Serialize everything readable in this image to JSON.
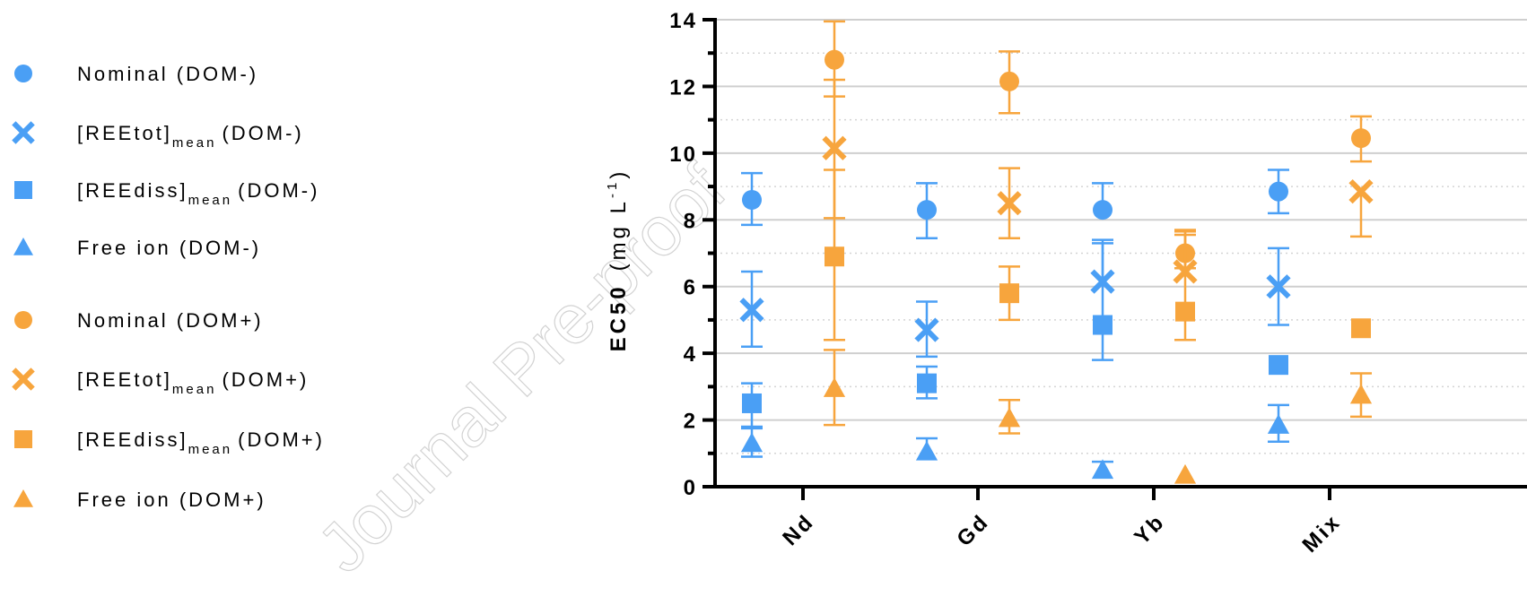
{
  "watermark": "Journal Pre-proof",
  "chart_data": {
    "type": "scatter",
    "ylabel_bold": "EC50",
    "ylabel_unit_open": "(mg L",
    "ylabel_unit_exp": "-1",
    "ylabel_unit_close": ")",
    "ylim": [
      0,
      14
    ],
    "yticks": [
      "0",
      "2",
      "4",
      "6",
      "8",
      "10",
      "12",
      "14"
    ],
    "grid": true,
    "legend_position": "left",
    "categories": [
      "Nd",
      "Gd",
      "Yb",
      "Mix"
    ],
    "colors": {
      "dom_minus": "#4a9ff5",
      "dom_plus": "#f7a53d"
    },
    "series": [
      {
        "name": "Nominal (DOM-)",
        "label_main": "Nominal (DOM-)",
        "label_sub": "",
        "label_tail": "",
        "marker": "circle",
        "group": "dom_minus",
        "values": [
          8.6,
          8.3,
          8.3,
          8.85
        ],
        "errors": [
          [
            7.85,
            9.4
          ],
          [
            7.45,
            9.1
          ],
          [
            null,
            9.1
          ],
          [
            8.2,
            9.5
          ]
        ]
      },
      {
        "name": "[REEtot]mean (DOM-)",
        "label_main": "[REEtot]",
        "label_sub": "mean",
        "label_tail": "(DOM-)",
        "marker": "cross",
        "group": "dom_minus",
        "values": [
          5.3,
          4.7,
          6.15,
          6.0
        ],
        "errors": [
          [
            4.2,
            6.45
          ],
          [
            3.9,
            5.55
          ],
          [
            null,
            7.4
          ],
          [
            4.85,
            7.15
          ]
        ]
      },
      {
        "name": "[REEdiss]mean (DOM-)",
        "label_main": "[REEdiss]",
        "label_sub": "mean",
        "label_tail": "(DOM-)",
        "marker": "square",
        "group": "dom_minus",
        "values": [
          2.5,
          3.1,
          4.85,
          3.65
        ],
        "errors": [
          [
            1.8,
            3.1
          ],
          [
            2.65,
            3.6
          ],
          [
            3.8,
            7.3
          ],
          [
            null,
            null
          ]
        ]
      },
      {
        "name": "Free ion (DOM-)",
        "label_main": "Free ion (DOM-)",
        "label_sub": "",
        "label_tail": "",
        "marker": "triangle",
        "group": "dom_minus",
        "values": [
          1.3,
          1.05,
          0.5,
          1.85
        ],
        "errors": [
          [
            0.9,
            1.75
          ],
          [
            null,
            1.45
          ],
          [
            null,
            0.75
          ],
          [
            1.35,
            2.45
          ]
        ]
      },
      {
        "name": "Nominal (DOM+)",
        "label_main": "Nominal (DOM+)",
        "label_sub": "",
        "label_tail": "",
        "marker": "circle",
        "group": "dom_plus",
        "values": [
          12.8,
          12.15,
          7.0,
          10.45
        ],
        "errors": [
          [
            11.7,
            13.95
          ],
          [
            11.2,
            13.05
          ],
          [
            6.55,
            7.7
          ],
          [
            9.75,
            11.1
          ]
        ]
      },
      {
        "name": "[REEtot]mean (DOM+)",
        "label_main": "[REEtot]",
        "label_sub": "mean",
        "label_tail": "(DOM+)",
        "marker": "cross",
        "group": "dom_plus",
        "values": [
          10.15,
          8.5,
          6.45,
          8.85
        ],
        "errors": [
          [
            8.05,
            12.2
          ],
          [
            7.45,
            9.55
          ],
          [
            null,
            7.55
          ],
          [
            7.5,
            null
          ]
        ]
      },
      {
        "name": "[REEdiss]mean (DOM+)",
        "label_main": "[REEdiss]",
        "label_sub": "mean",
        "label_tail": "(DOM+)",
        "marker": "square",
        "group": "dom_plus",
        "values": [
          6.9,
          5.8,
          5.25,
          4.75
        ],
        "errors": [
          [
            4.4,
            9.5
          ],
          [
            5.0,
            6.6
          ],
          [
            4.4,
            7.65
          ],
          [
            null,
            null
          ]
        ]
      },
      {
        "name": "Free ion (DOM+)",
        "label_main": "Free ion (DOM+)",
        "label_sub": "",
        "label_tail": "",
        "marker": "triangle",
        "group": "dom_plus",
        "values": [
          2.95,
          2.05,
          0.35,
          2.75
        ],
        "errors": [
          [
            1.85,
            4.1
          ],
          [
            1.6,
            2.6
          ],
          [
            null,
            null
          ],
          [
            2.1,
            3.4
          ]
        ]
      }
    ]
  }
}
